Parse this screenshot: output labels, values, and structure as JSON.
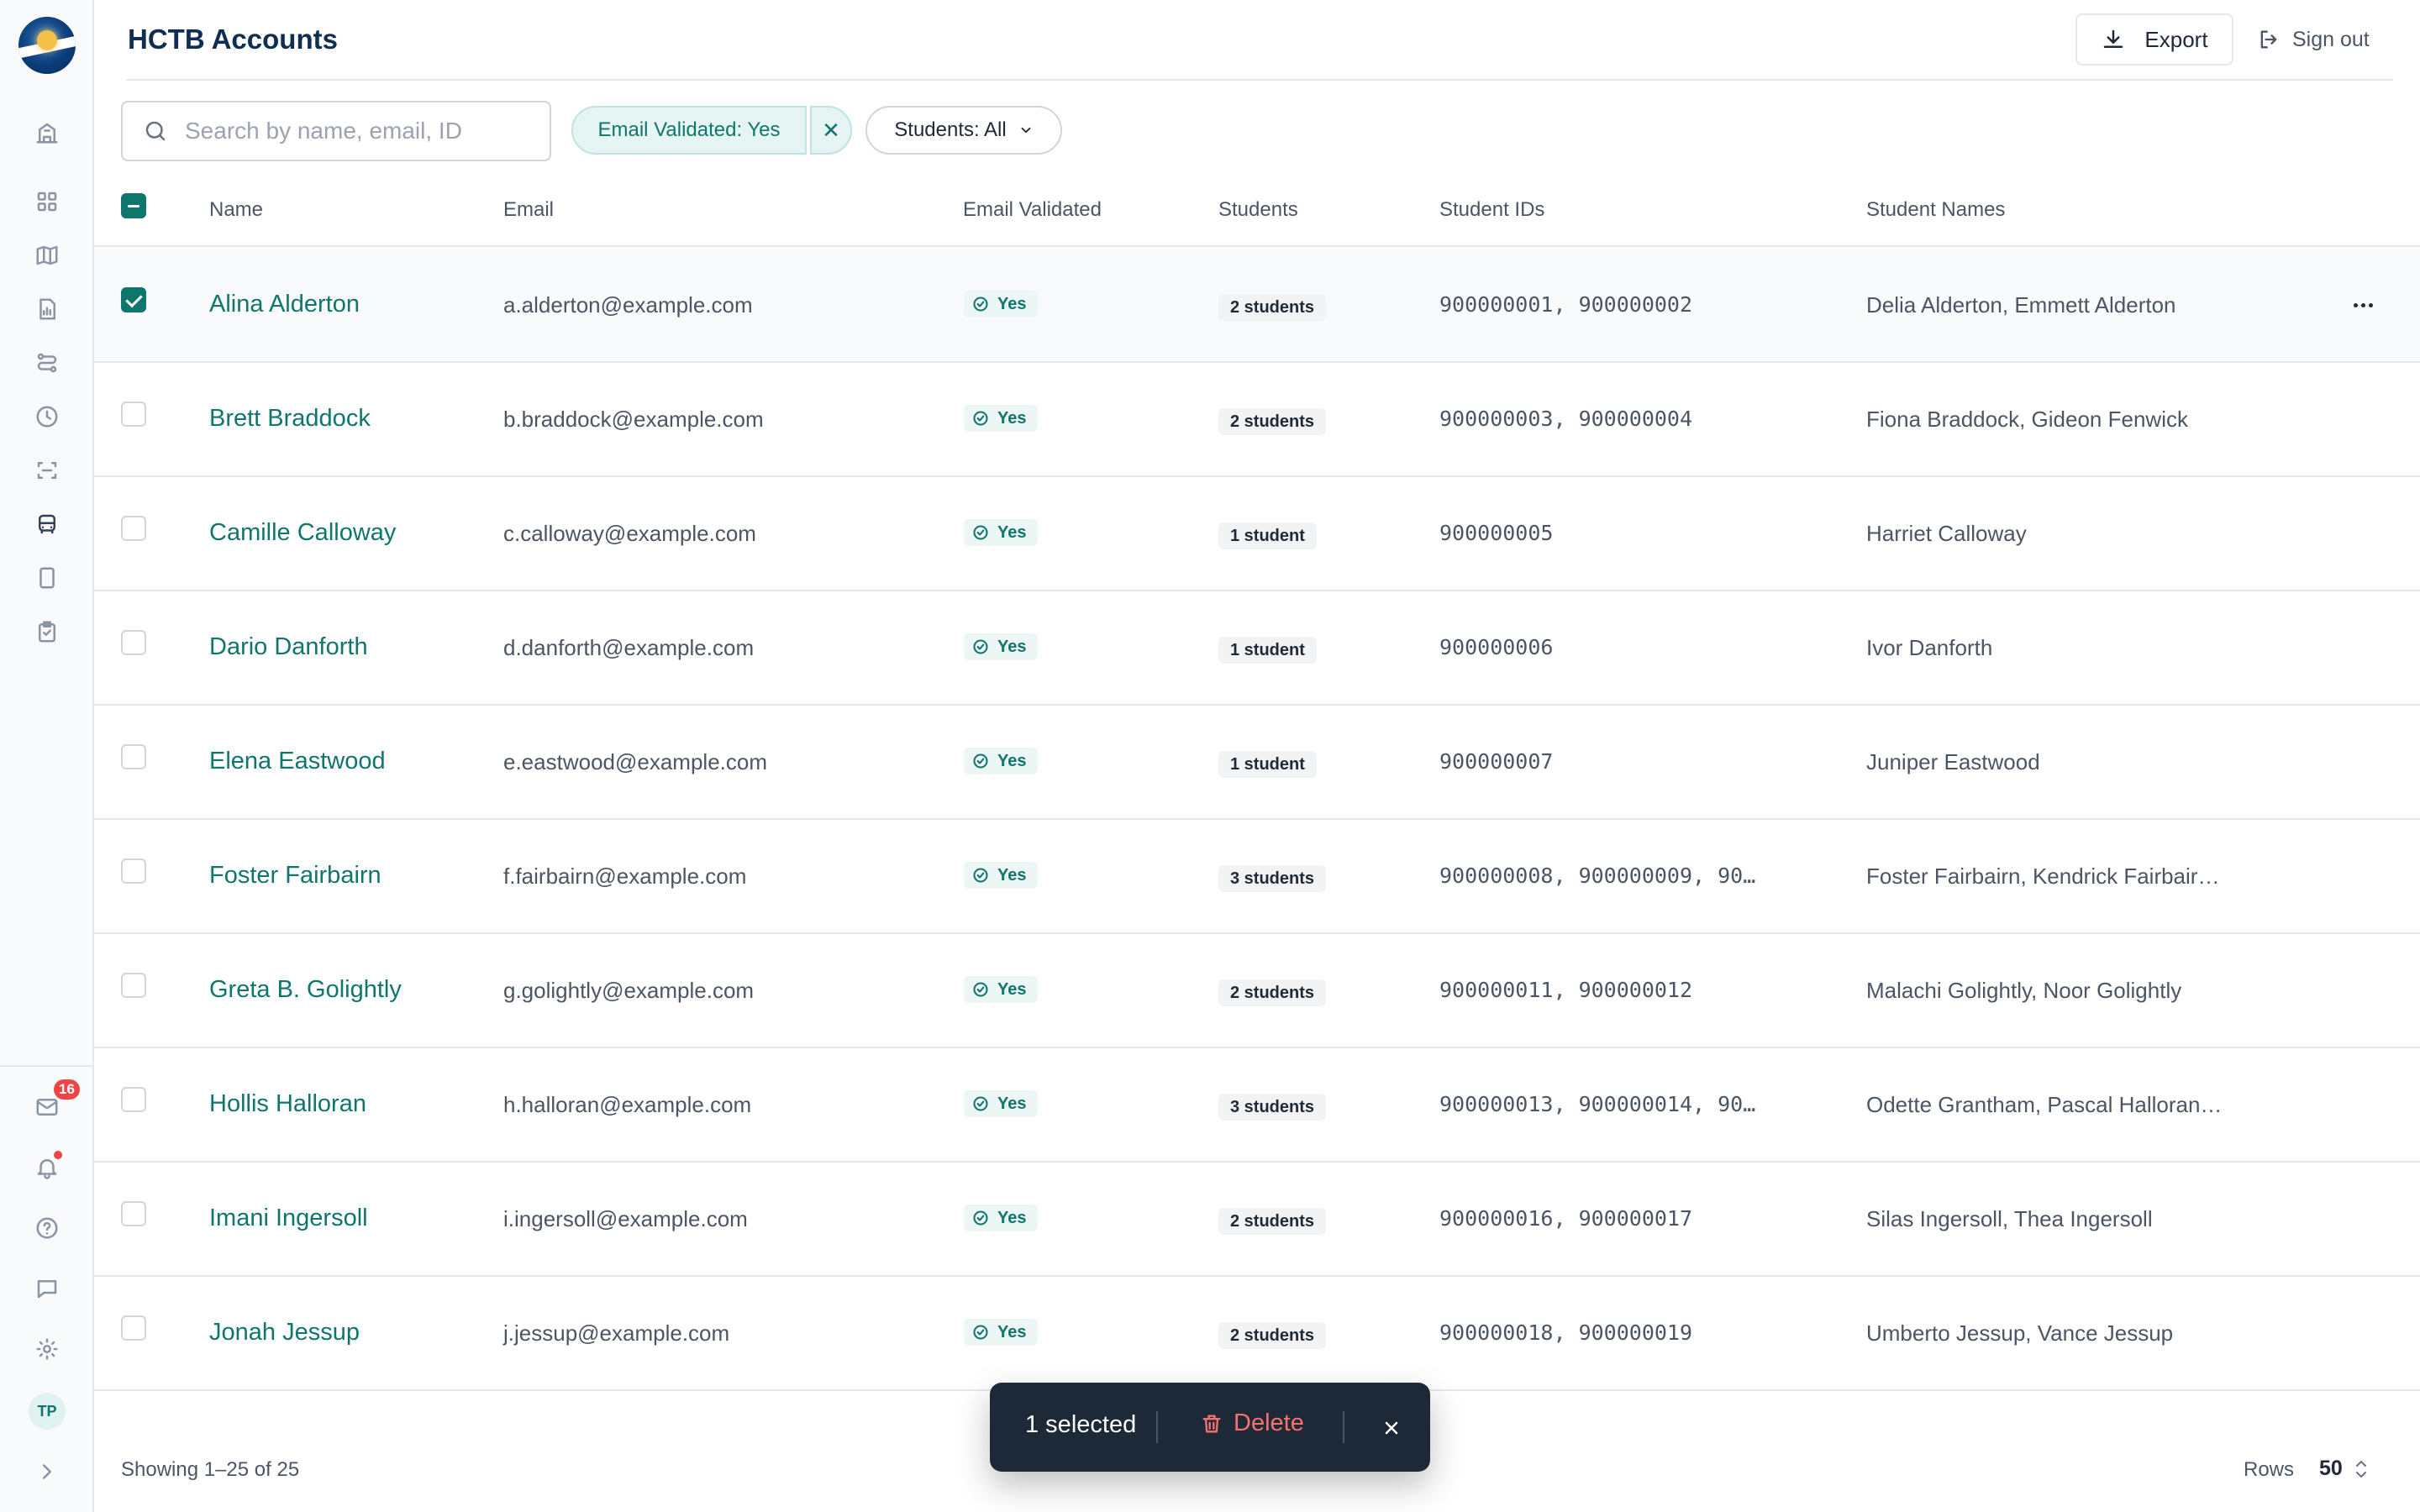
{
  "header": {
    "title": "HCTB Accounts",
    "export_label": "Export",
    "signout_label": "Sign out"
  },
  "search": {
    "placeholder": "Search by name, email, ID",
    "value": ""
  },
  "filters": {
    "validated_chip": "Email Validated: Yes",
    "students_chip": "Students: All"
  },
  "sidebar": {
    "icons": [
      "school-icon",
      "dashboard-icon",
      "map-icon",
      "report-icon",
      "routes-icon",
      "history-icon",
      "scan-icon",
      "bus-icon",
      "device-icon",
      "checklist-icon"
    ],
    "active": "bus-icon",
    "mail_badge": "16",
    "avatar_initials": "TP"
  },
  "table": {
    "columns": {
      "name": "Name",
      "email": "Email",
      "validated": "Email Validated",
      "students": "Students",
      "ids": "Student IDs",
      "names": "Student Names"
    },
    "rows": [
      {
        "name": "Alina Alderton",
        "email": "a.alderton@example.com",
        "validated": "Yes",
        "students": "2 students",
        "ids": "900000001, 900000002",
        "names": "Delia Alderton, Emmett Alderton",
        "selected": true
      },
      {
        "name": "Brett Braddock",
        "email": "b.braddock@example.com",
        "validated": "Yes",
        "students": "2 students",
        "ids": "900000003, 900000004",
        "names": "Fiona Braddock, Gideon Fenwick",
        "selected": false
      },
      {
        "name": "Camille Calloway",
        "email": "c.calloway@example.com",
        "validated": "Yes",
        "students": "1 student",
        "ids": "900000005",
        "names": "Harriet Calloway",
        "selected": false
      },
      {
        "name": "Dario Danforth",
        "email": "d.danforth@example.com",
        "validated": "Yes",
        "students": "1 student",
        "ids": "900000006",
        "names": "Ivor Danforth",
        "selected": false
      },
      {
        "name": "Elena Eastwood",
        "email": "e.eastwood@example.com",
        "validated": "Yes",
        "students": "1 student",
        "ids": "900000007",
        "names": "Juniper Eastwood",
        "selected": false
      },
      {
        "name": "Foster Fairbairn",
        "email": "f.fairbairn@example.com",
        "validated": "Yes",
        "students": "3 students",
        "ids": "900000008, 900000009, 90…",
        "names": "Foster Fairbairn, Kendrick Fairbair…",
        "selected": false
      },
      {
        "name": "Greta B. Golightly",
        "email": "g.golightly@example.com",
        "validated": "Yes",
        "students": "2 students",
        "ids": "900000011, 900000012",
        "names": "Malachi Golightly, Noor Golightly",
        "selected": false
      },
      {
        "name": "Hollis Halloran",
        "email": "h.halloran@example.com",
        "validated": "Yes",
        "students": "3 students",
        "ids": "900000013, 900000014, 90…",
        "names": "Odette Grantham, Pascal Halloran…",
        "selected": false
      },
      {
        "name": "Imani Ingersoll",
        "email": "i.ingersoll@example.com",
        "validated": "Yes",
        "students": "2 students",
        "ids": "900000016, 900000017",
        "names": "Silas Ingersoll, Thea Ingersoll",
        "selected": false
      },
      {
        "name": "Jonah Jessup",
        "email": "j.jessup@example.com",
        "validated": "Yes",
        "students": "2 students",
        "ids": "900000018, 900000019",
        "names": "Umberto Jessup, Vance Jessup",
        "selected": false
      }
    ]
  },
  "footer": {
    "showing": "Showing 1–25 of 25",
    "rows_label": "Rows",
    "rows_value": "50"
  },
  "selection_bar": {
    "count_label": "1 selected",
    "delete_label": "Delete"
  },
  "colors": {
    "accent": "#0f766e",
    "danger": "#f87171",
    "bar_bg": "#1e2938"
  }
}
